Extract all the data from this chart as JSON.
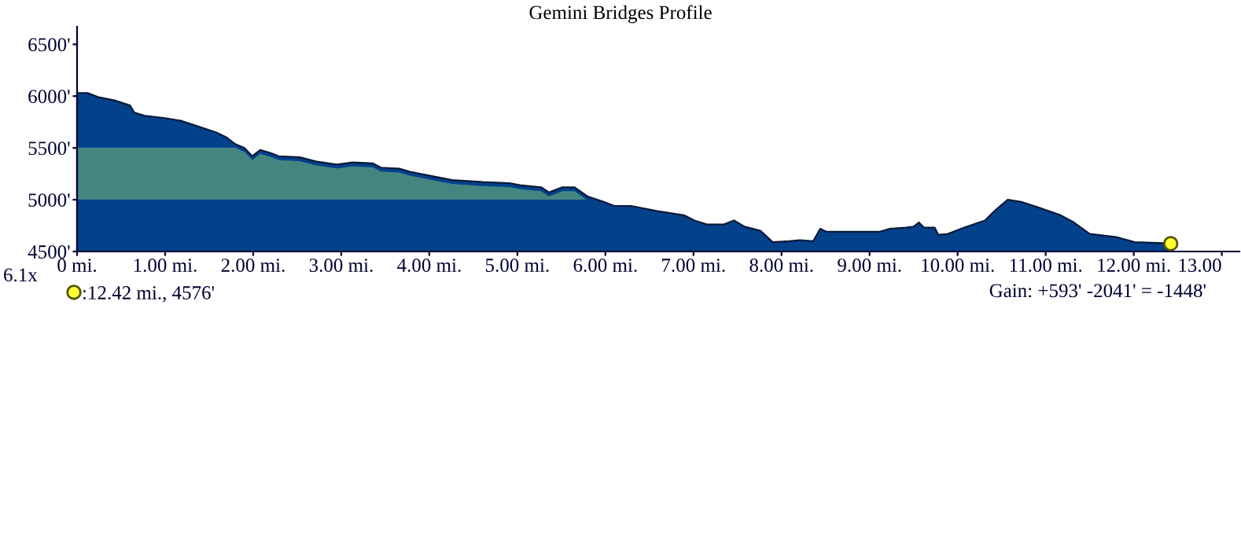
{
  "chart_data": {
    "type": "area",
    "title": "Gemini Bridges Profile",
    "xlim": [
      0,
      13.2
    ],
    "ylim": [
      4500,
      6670
    ],
    "xticks": [
      {
        "value": 0,
        "label": "0 mi."
      },
      {
        "value": 1,
        "label": "1.00 mi."
      },
      {
        "value": 2,
        "label": "2.00 mi."
      },
      {
        "value": 3,
        "label": "3.00 mi."
      },
      {
        "value": 4,
        "label": "4.00 mi."
      },
      {
        "value": 5,
        "label": "5.00 mi."
      },
      {
        "value": 6,
        "label": "6.00 mi."
      },
      {
        "value": 7,
        "label": "7.00 mi."
      },
      {
        "value": 8,
        "label": "8.00 mi."
      },
      {
        "value": 9,
        "label": "9.00 mi."
      },
      {
        "value": 10,
        "label": "10.00 mi."
      },
      {
        "value": 11,
        "label": "11.00 mi."
      },
      {
        "value": 12,
        "label": "12.00 mi."
      },
      {
        "value": 13,
        "label": "13.00"
      }
    ],
    "yticks": [
      {
        "value": 4500,
        "label": "4500'"
      },
      {
        "value": 5000,
        "label": "5000'"
      },
      {
        "value": 5500,
        "label": "5500'"
      },
      {
        "value": 6000,
        "label": "6000'"
      },
      {
        "value": 6500,
        "label": "6500'"
      }
    ],
    "grid": false,
    "legend": "bottom left",
    "bands": [
      {
        "axis": "y",
        "from": 5000,
        "to": 5500,
        "color": "#438680"
      }
    ],
    "series": [
      {
        "type": "area",
        "color": "#03418a",
        "x": [
          0,
          0.12,
          0.24,
          0.42,
          0.6,
          0.65,
          0.77,
          0.98,
          1.19,
          1.4,
          1.58,
          1.7,
          1.79,
          1.9,
          1.99,
          2.08,
          2.2,
          2.29,
          2.53,
          2.71,
          2.95,
          3.13,
          3.36,
          3.45,
          3.66,
          3.78,
          4.02,
          4.26,
          4.61,
          4.91,
          5.03,
          5.27,
          5.36,
          5.51,
          5.65,
          5.8,
          5.98,
          6.1,
          6.29,
          6.59,
          6.89,
          7.01,
          7.16,
          7.34,
          7.46,
          7.58,
          7.76,
          7.9,
          8.09,
          8.21,
          8.36,
          8.44,
          8.51,
          8.81,
          9.11,
          9.23,
          9.41,
          9.5,
          9.56,
          9.62,
          9.74,
          9.78,
          9.89,
          10.07,
          10.31,
          10.43,
          10.57,
          10.72,
          10.9,
          11.17,
          11.32,
          11.5,
          11.8,
          12.01,
          12.34,
          12.42
        ],
        "values": [
          6030,
          6030,
          5990,
          5960,
          5910,
          5840,
          5810,
          5790,
          5760,
          5700,
          5650,
          5600,
          5540,
          5500,
          5420,
          5480,
          5450,
          5420,
          5410,
          5370,
          5340,
          5360,
          5350,
          5310,
          5300,
          5270,
          5230,
          5190,
          5170,
          5160,
          5140,
          5120,
          5070,
          5120,
          5120,
          5030,
          4980,
          4940,
          4940,
          4890,
          4850,
          4800,
          4760,
          4760,
          4800,
          4740,
          4700,
          4590,
          4600,
          4610,
          4600,
          4720,
          4690,
          4690,
          4690,
          4720,
          4730,
          4740,
          4780,
          4730,
          4730,
          4660,
          4670,
          4730,
          4800,
          4900,
          5000,
          4980,
          4930,
          4850,
          4780,
          4670,
          4640,
          4590,
          4580,
          4576
        ]
      },
      {
        "type": "scatter",
        "name": ":12.42 mi., 4576'",
        "color": "#ffff33",
        "x": [
          12.42
        ],
        "values": [
          4576
        ],
        "marker": "circle"
      }
    ],
    "annotations": [
      "6.1x",
      "Gain: +593' -2041' = -1448'"
    ]
  }
}
